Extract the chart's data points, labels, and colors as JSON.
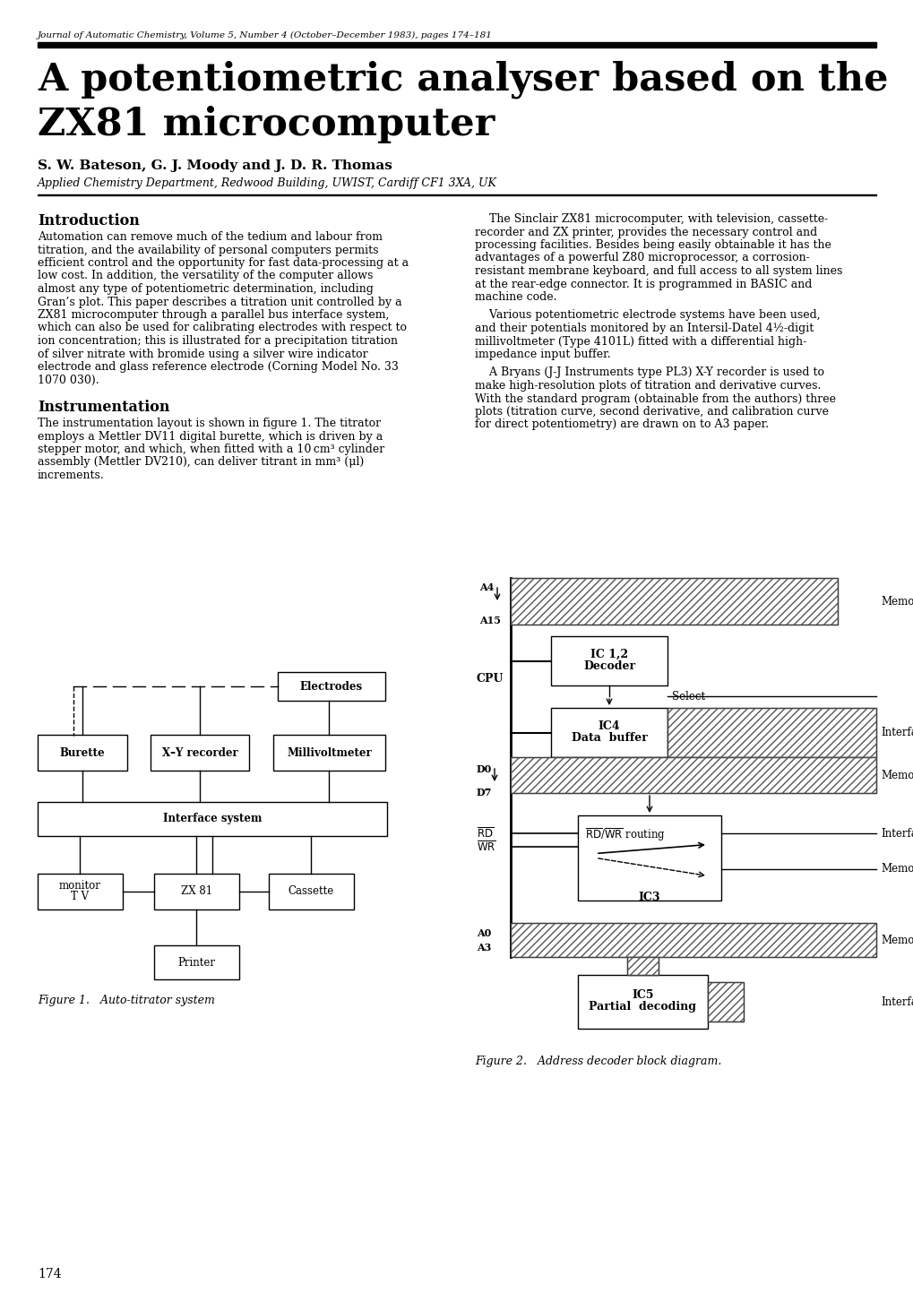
{
  "journal_header": "Journal of Automatic Chemistry, Volume 5, Number 4 (October–December 1983), pages 174–181",
  "title_line1": "A potentiometric analyser based on the",
  "title_line2": "ZX81 microcomputer",
  "authors": "S. W. Bateson, G. J. Moody and J. D. R. Thomas",
  "affiliation": "Applied Chemistry Department, Redwood Building, UWIST, Cardiff CF1 3XA, UK",
  "intro_heading": "Introduction",
  "instrum_heading": "Instrumentation",
  "fig1_caption": "Figure 1.   Auto-titrator system",
  "fig2_caption": "Figure 2.   Address decoder block diagram.",
  "page_number": "174",
  "bg_color": "#ffffff",
  "text_color": "#000000",
  "intro_lines": [
    "Automation can remove much of the tedium and labour from",
    "titration, and the availability of personal computers permits",
    "efficient control and the opportunity for fast data-processing at a",
    "low cost. In addition, the versatility of the computer allows",
    "almost any type of potentiometric determination, including",
    "Gran’s plot. This paper describes a titration unit controlled by a",
    "ZX81 microcomputer through a parallel bus interface system,",
    "which can also be used for calibrating electrodes with respect to",
    "ion concentration; this is illustrated for a precipitation titration",
    "of silver nitrate with bromide using a silver wire indicator",
    "electrode and glass reference electrode (Corning Model No. 33",
    "1070 030)."
  ],
  "instrum_lines": [
    "The instrumentation layout is shown in figure 1. The titrator",
    "employs a Mettler DV11 digital burette, which is driven by a",
    "stepper motor, and which, when fitted with a 10 cm³ cylinder",
    "assembly (Mettler DV210), can deliver titrant in mm³ (μl)",
    "increments."
  ],
  "right_lines_1": [
    "    The Sinclair ZX81 microcomputer, with television, cassette-",
    "recorder and ZX printer, provides the necessary control and",
    "processing facilities. Besides being easily obtainable it has the",
    "advantages of a powerful Z80 microprocessor, a corrosion-",
    "resistant membrane keyboard, and full access to all system lines",
    "at the rear-edge connector. It is programmed in BASIC and",
    "machine code."
  ],
  "right_lines_2": [
    "    Various potentiometric electrode systems have been used,",
    "and their potentials monitored by an Intersil-Datel 4½-digit",
    "millivoltmeter (Type 4101L) fitted with a differential high-",
    "impedance input buffer."
  ],
  "right_lines_3": [
    "    A Bryans (J-J Instruments type PL3) X-Y recorder is used to",
    "make high-resolution plots of titration and derivative curves.",
    "With the standard program (obtainable from the authors) three",
    "plots (titration curve, second derivative, and calibration curve",
    "for direct potentiometry) are drawn on to A3 paper."
  ]
}
